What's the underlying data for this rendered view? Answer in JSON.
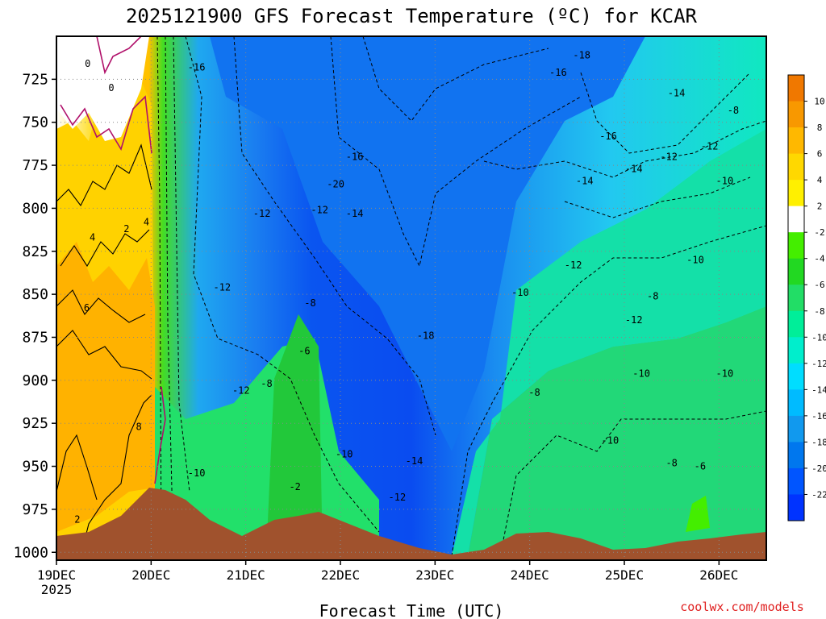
{
  "chart_data": {
    "type": "heatmap",
    "title": "2025121900 GFS Forecast Temperature (ºC) for KCAR",
    "xlabel": "Forecast Time (UTC)",
    "ylabel": "",
    "credit": "coolwx.com/models",
    "x_ticks": [
      "19DEC",
      "20DEC",
      "21DEC",
      "22DEC",
      "23DEC",
      "24DEC",
      "25DEC",
      "26DEC"
    ],
    "x_start_year": "2025",
    "xlim_days": [
      0,
      7.5
    ],
    "y_ticks": [
      "725",
      "750",
      "775",
      "800",
      "825",
      "850",
      "875",
      "900",
      "925",
      "950",
      "975",
      "1000"
    ],
    "ylim_hpa": [
      1000,
      700
    ],
    "colorbar": {
      "labels": [
        "10",
        "8",
        "6",
        "4",
        "2",
        "-2",
        "-4",
        "-6",
        "-8",
        "-10",
        "-12",
        "-14",
        "-16",
        "-18",
        "-20",
        "-22"
      ],
      "colors": [
        "#f07800",
        "#f89800",
        "#ffb800",
        "#ffd800",
        "#fff000",
        "#ffffff",
        "#44ee00",
        "#22d822",
        "#22dd66",
        "#00ee99",
        "#00eecc",
        "#00ddff",
        "#00bbff",
        "#1199ee",
        "#0077ee",
        "#0055ff",
        "#0033ff"
      ]
    },
    "contour_labels": [
      {
        "text": "0",
        "day": 0.33,
        "hpa": 716
      },
      {
        "text": "0",
        "day": 0.58,
        "hpa": 730
      },
      {
        "text": "2",
        "day": 0.22,
        "hpa": 981
      },
      {
        "text": "4",
        "day": 0.38,
        "hpa": 817
      },
      {
        "text": "2",
        "day": 0.74,
        "hpa": 812
      },
      {
        "text": "4",
        "day": 0.95,
        "hpa": 808
      },
      {
        "text": "6",
        "day": 0.32,
        "hpa": 858
      },
      {
        "text": "8",
        "day": 0.87,
        "hpa": 927
      },
      {
        "text": "-16",
        "day": 1.48,
        "hpa": 718
      },
      {
        "text": "-12",
        "day": 2.17,
        "hpa": 803
      },
      {
        "text": "-12",
        "day": 2.78,
        "hpa": 801
      },
      {
        "text": "-12",
        "day": 1.75,
        "hpa": 846
      },
      {
        "text": "-12",
        "day": 1.95,
        "hpa": 906
      },
      {
        "text": "-8",
        "day": 2.22,
        "hpa": 902
      },
      {
        "text": "-10",
        "day": 1.48,
        "hpa": 954
      },
      {
        "text": "-8",
        "day": 2.68,
        "hpa": 855
      },
      {
        "text": "-6",
        "day": 2.62,
        "hpa": 883
      },
      {
        "text": "-2",
        "day": 2.52,
        "hpa": 962
      },
      {
        "text": "-10",
        "day": 3.04,
        "hpa": 943
      },
      {
        "text": "-20",
        "day": 2.95,
        "hpa": 786
      },
      {
        "text": "-16",
        "day": 3.15,
        "hpa": 770
      },
      {
        "text": "-14",
        "day": 3.15,
        "hpa": 803
      },
      {
        "text": "-18",
        "day": 3.9,
        "hpa": 874
      },
      {
        "text": "-14",
        "day": 3.78,
        "hpa": 947
      },
      {
        "text": "-12",
        "day": 3.6,
        "hpa": 968
      },
      {
        "text": "-10",
        "day": 4.9,
        "hpa": 849
      },
      {
        "text": "-8",
        "day": 5.05,
        "hpa": 907
      },
      {
        "text": "-18",
        "day": 5.55,
        "hpa": 711
      },
      {
        "text": "-16",
        "day": 5.3,
        "hpa": 721
      },
      {
        "text": "-16",
        "day": 5.83,
        "hpa": 758
      },
      {
        "text": "-14",
        "day": 5.58,
        "hpa": 784
      },
      {
        "text": "-14",
        "day": 6.1,
        "hpa": 777
      },
      {
        "text": "-14",
        "day": 6.55,
        "hpa": 733
      },
      {
        "text": "-12",
        "day": 5.46,
        "hpa": 833
      },
      {
        "text": "-12",
        "day": 6.1,
        "hpa": 865
      },
      {
        "text": "-12",
        "day": 6.47,
        "hpa": 770
      },
      {
        "text": "-12",
        "day": 6.9,
        "hpa": 764
      },
      {
        "text": "-10",
        "day": 6.75,
        "hpa": 830
      },
      {
        "text": "-8",
        "day": 6.3,
        "hpa": 851
      },
      {
        "text": "-10",
        "day": 5.85,
        "hpa": 935
      },
      {
        "text": "-10",
        "day": 6.18,
        "hpa": 896
      },
      {
        "text": "-10",
        "day": 7.06,
        "hpa": 784
      },
      {
        "text": "-10",
        "day": 7.06,
        "hpa": 896
      },
      {
        "text": "-8",
        "day": 7.15,
        "hpa": 743
      },
      {
        "text": "-8",
        "day": 6.5,
        "hpa": 948
      },
      {
        "text": "-6",
        "day": 6.8,
        "hpa": 950
      }
    ]
  }
}
